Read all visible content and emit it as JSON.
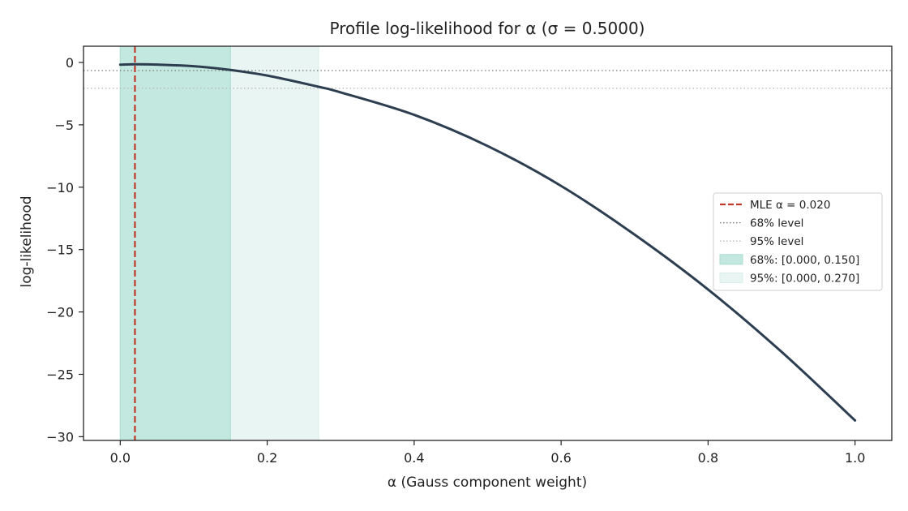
{
  "chart_data": {
    "type": "line",
    "title": "Profile log-likelihood for α  (σ = 0.5000)",
    "xlabel": "α  (Gauss component weight)",
    "ylabel": "log-likelihood",
    "xlim": [
      -0.05,
      1.05
    ],
    "ylim": [
      -30.3,
      1.3
    ],
    "x_ticks": [
      0.0,
      0.2,
      0.4,
      0.6,
      0.8,
      1.0
    ],
    "x_tick_labels": [
      "0.0",
      "0.2",
      "0.4",
      "0.6",
      "0.8",
      "1.0"
    ],
    "y_ticks": [
      0,
      -5,
      -10,
      -15,
      -20,
      -25,
      -30
    ],
    "y_tick_labels": [
      "0",
      "−5",
      "−10",
      "−15",
      "−20",
      "−25",
      "−30"
    ],
    "grid": false,
    "legend_position": "center-right",
    "series": [
      {
        "color": "#2d3e50",
        "x": [
          0.0,
          0.02,
          0.05,
          0.1,
          0.15,
          0.2,
          0.27,
          0.3,
          0.4,
          0.5,
          0.6,
          0.7,
          0.8,
          0.9,
          1.0
        ],
        "y": [
          -0.18,
          -0.15,
          -0.17,
          -0.3,
          -0.6,
          -1.05,
          -1.95,
          -2.4,
          -4.2,
          -6.7,
          -9.9,
          -13.8,
          -18.2,
          -23.2,
          -28.7
        ]
      }
    ],
    "mle": {
      "x": 0.02,
      "label": "MLE α = 0.020",
      "color": "#c0392b"
    },
    "levels": [
      {
        "y": -0.65,
        "label": "68% level",
        "color": "#777777"
      },
      {
        "y": -2.07,
        "label": "95% level",
        "color": "#bbbbbb"
      }
    ],
    "intervals": [
      {
        "from": 0.0,
        "to": 0.27,
        "label": "95%: [0.000, 0.270]",
        "color": "#e9f5f2"
      },
      {
        "from": 0.0,
        "to": 0.15,
        "label": "68%: [0.000, 0.150]",
        "color": "#c3e8df"
      }
    ],
    "legend_entries": [
      "MLE α = 0.020",
      "68% level",
      "95% level",
      "68%: [0.000, 0.150]",
      "95%: [0.000, 0.270]"
    ]
  }
}
